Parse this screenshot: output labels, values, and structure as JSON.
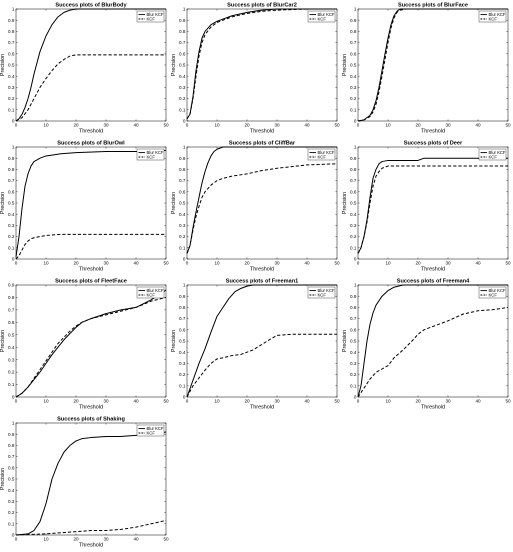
{
  "chart_data": [
    {
      "type": "line",
      "title": "Success plots of BlurBody",
      "xlabel": "Threshold",
      "ylabel": "Precision",
      "xlim": [
        0,
        50
      ],
      "ylim": [
        0,
        1
      ],
      "xticks": [
        0,
        10,
        20,
        30,
        40,
        50
      ],
      "yticks": [
        0,
        0.1,
        0.2,
        0.3,
        0.4,
        0.5,
        0.6,
        0.7,
        0.8,
        0.9,
        1
      ],
      "legend": "top-right",
      "series": [
        {
          "name": "Blur KCF",
          "style": "solid",
          "color": "#000000",
          "x": [
            0,
            1,
            2,
            3,
            4,
            5,
            6,
            7,
            8,
            10,
            12,
            14,
            16,
            18,
            20,
            25,
            30,
            40,
            50
          ],
          "y": [
            0,
            0.02,
            0.06,
            0.12,
            0.2,
            0.3,
            0.42,
            0.52,
            0.62,
            0.76,
            0.86,
            0.93,
            0.97,
            0.99,
            1.0,
            1.0,
            1.0,
            1.0,
            1.0
          ]
        },
        {
          "name": "KCF",
          "style": "dashed",
          "color": "#000000",
          "x": [
            0,
            2,
            4,
            6,
            8,
            10,
            12,
            14,
            16,
            18,
            20,
            25,
            30,
            40,
            50
          ],
          "y": [
            0,
            0.03,
            0.1,
            0.2,
            0.3,
            0.38,
            0.45,
            0.51,
            0.55,
            0.58,
            0.59,
            0.59,
            0.59,
            0.59,
            0.59
          ]
        }
      ]
    },
    {
      "type": "line",
      "title": "Success plots of BlurCar2",
      "xlabel": "Threshold",
      "ylabel": "Precision",
      "xlim": [
        0,
        50
      ],
      "ylim": [
        0,
        1
      ],
      "xticks": [
        0,
        10,
        20,
        30,
        40,
        50
      ],
      "yticks": [
        0,
        0.1,
        0.2,
        0.3,
        0.4,
        0.5,
        0.6,
        0.7,
        0.8,
        0.9,
        1
      ],
      "legend": "top-right",
      "series": [
        {
          "name": "Blur KCF",
          "style": "solid",
          "color": "#000000",
          "x": [
            0,
            1,
            2,
            3,
            4,
            5,
            6,
            8,
            10,
            12,
            15,
            20,
            25,
            30,
            40,
            50
          ],
          "y": [
            0.02,
            0.06,
            0.22,
            0.45,
            0.62,
            0.74,
            0.8,
            0.86,
            0.89,
            0.91,
            0.94,
            0.97,
            0.99,
            1.0,
            1.0,
            1.0
          ]
        },
        {
          "name": "KCF",
          "style": "dashed",
          "color": "#000000",
          "x": [
            0,
            1,
            2,
            3,
            4,
            5,
            6,
            8,
            10,
            12,
            15,
            20,
            25,
            30,
            40,
            50
          ],
          "y": [
            0.02,
            0.06,
            0.2,
            0.4,
            0.58,
            0.7,
            0.77,
            0.84,
            0.88,
            0.9,
            0.93,
            0.96,
            0.98,
            0.99,
            1.0,
            1.0
          ]
        }
      ]
    },
    {
      "type": "line",
      "title": "Success plots of BlurFace",
      "xlabel": "Threshold",
      "ylabel": "Precision",
      "xlim": [
        0,
        50
      ],
      "ylim": [
        0,
        1
      ],
      "xticks": [
        0,
        10,
        20,
        30,
        40,
        50
      ],
      "yticks": [
        0,
        0.1,
        0.2,
        0.3,
        0.4,
        0.5,
        0.6,
        0.7,
        0.8,
        0.9,
        1
      ],
      "legend": "top-right",
      "series": [
        {
          "name": "Blur KCF",
          "style": "solid",
          "color": "#000000",
          "x": [
            0,
            2,
            4,
            5,
            6,
            7,
            8,
            9,
            10,
            11,
            12,
            13,
            14,
            16,
            20,
            30,
            40,
            50
          ],
          "y": [
            0,
            0.01,
            0.05,
            0.1,
            0.18,
            0.3,
            0.45,
            0.6,
            0.74,
            0.86,
            0.94,
            0.98,
            1.0,
            1.0,
            1.0,
            1.0,
            1.0,
            1.0
          ]
        },
        {
          "name": "KCF",
          "style": "dashed",
          "color": "#000000",
          "x": [
            0,
            2,
            4,
            5,
            6,
            7,
            8,
            9,
            10,
            11,
            12,
            13,
            14,
            16,
            20,
            30,
            40,
            50
          ],
          "y": [
            0,
            0.01,
            0.04,
            0.08,
            0.15,
            0.26,
            0.4,
            0.55,
            0.7,
            0.83,
            0.92,
            0.97,
            0.99,
            1.0,
            1.0,
            1.0,
            1.0,
            1.0
          ]
        }
      ]
    },
    {
      "type": "line",
      "title": "Success plots of BlurOwl",
      "xlabel": "Threshold",
      "ylabel": "Precision",
      "xlim": [
        0,
        50
      ],
      "ylim": [
        0,
        1
      ],
      "xticks": [
        0,
        10,
        20,
        30,
        40,
        50
      ],
      "yticks": [
        0,
        0.1,
        0.2,
        0.3,
        0.4,
        0.5,
        0.6,
        0.7,
        0.8,
        0.9,
        1
      ],
      "legend": "top-right",
      "series": [
        {
          "name": "Blur KCF",
          "style": "solid",
          "color": "#000000",
          "x": [
            0,
            1,
            2,
            3,
            4,
            5,
            6,
            8,
            10,
            15,
            20,
            30,
            40,
            50
          ],
          "y": [
            0.02,
            0.2,
            0.45,
            0.65,
            0.76,
            0.83,
            0.87,
            0.9,
            0.92,
            0.94,
            0.95,
            0.96,
            0.96,
            0.97
          ]
        },
        {
          "name": "KCF",
          "style": "dashed",
          "color": "#000000",
          "x": [
            0,
            1,
            2,
            3,
            4,
            5,
            6,
            8,
            10,
            15,
            20,
            30,
            40,
            50
          ],
          "y": [
            0.0,
            0.03,
            0.08,
            0.13,
            0.16,
            0.18,
            0.19,
            0.2,
            0.21,
            0.22,
            0.22,
            0.22,
            0.22,
            0.22
          ]
        }
      ]
    },
    {
      "type": "line",
      "title": "Success plots of CliffBar",
      "xlabel": "Threshold",
      "ylabel": "Precision",
      "xlim": [
        0,
        50
      ],
      "ylim": [
        0,
        1
      ],
      "xticks": [
        0,
        10,
        20,
        30,
        40,
        50
      ],
      "yticks": [
        0,
        0.1,
        0.2,
        0.3,
        0.4,
        0.5,
        0.6,
        0.7,
        0.8,
        0.9,
        1
      ],
      "legend": "top-right",
      "series": [
        {
          "name": "Blur KCF",
          "style": "solid",
          "color": "#000000",
          "x": [
            0,
            1,
            2,
            3,
            4,
            5,
            6,
            7,
            8,
            9,
            10,
            12,
            15,
            20,
            30,
            40,
            50
          ],
          "y": [
            0.05,
            0.12,
            0.28,
            0.42,
            0.55,
            0.68,
            0.78,
            0.86,
            0.92,
            0.96,
            0.98,
            1.0,
            1.0,
            1.0,
            1.0,
            1.0,
            1.0
          ]
        },
        {
          "name": "KCF",
          "style": "dashed",
          "color": "#000000",
          "x": [
            0,
            1,
            2,
            3,
            4,
            5,
            6,
            8,
            10,
            12,
            15,
            20,
            25,
            30,
            40,
            50
          ],
          "y": [
            0.05,
            0.12,
            0.26,
            0.38,
            0.47,
            0.55,
            0.6,
            0.66,
            0.7,
            0.72,
            0.74,
            0.76,
            0.79,
            0.81,
            0.84,
            0.85
          ]
        }
      ]
    },
    {
      "type": "line",
      "title": "Success plots of Deer",
      "xlabel": "Threshold",
      "ylabel": "Precision",
      "xlim": [
        0,
        50
      ],
      "ylim": [
        0,
        1
      ],
      "xticks": [
        0,
        10,
        20,
        30,
        40,
        50
      ],
      "yticks": [
        0,
        0.1,
        0.2,
        0.3,
        0.4,
        0.5,
        0.6,
        0.7,
        0.8,
        0.9,
        1
      ],
      "legend": "top-right",
      "series": [
        {
          "name": "Blur KCF",
          "style": "solid",
          "color": "#000000",
          "x": [
            0,
            1,
            2,
            3,
            4,
            5,
            6,
            7,
            8,
            10,
            15,
            20,
            22,
            25,
            30,
            40,
            50
          ],
          "y": [
            0.05,
            0.1,
            0.2,
            0.35,
            0.55,
            0.72,
            0.8,
            0.85,
            0.87,
            0.88,
            0.88,
            0.88,
            0.9,
            0.9,
            0.9,
            0.9,
            0.9
          ]
        },
        {
          "name": "KCF",
          "style": "dashed",
          "color": "#000000",
          "x": [
            0,
            1,
            2,
            3,
            4,
            5,
            6,
            7,
            8,
            10,
            15,
            20,
            30,
            40,
            50
          ],
          "y": [
            0.05,
            0.1,
            0.2,
            0.33,
            0.5,
            0.65,
            0.74,
            0.78,
            0.81,
            0.83,
            0.83,
            0.83,
            0.83,
            0.83,
            0.83
          ]
        }
      ]
    },
    {
      "type": "line",
      "title": "Success plots of FleetFace",
      "xlabel": "Threshold",
      "ylabel": "Precision",
      "xlim": [
        0,
        50
      ],
      "ylim": [
        0,
        0.9
      ],
      "xticks": [
        0,
        10,
        20,
        30,
        40,
        50
      ],
      "yticks": [
        0,
        0.1,
        0.2,
        0.3,
        0.4,
        0.5,
        0.6,
        0.7,
        0.8,
        0.9
      ],
      "legend": "top-right",
      "series": [
        {
          "name": "Blur KCF",
          "style": "solid",
          "color": "#000000",
          "x": [
            0,
            2,
            4,
            6,
            8,
            10,
            12,
            14,
            16,
            18,
            20,
            22,
            25,
            30,
            35,
            40,
            45,
            50
          ],
          "y": [
            0.0,
            0.03,
            0.08,
            0.14,
            0.2,
            0.27,
            0.34,
            0.4,
            0.46,
            0.51,
            0.56,
            0.6,
            0.63,
            0.67,
            0.7,
            0.72,
            0.78,
            0.86
          ]
        },
        {
          "name": "KCF",
          "style": "dashed",
          "color": "#000000",
          "x": [
            0,
            2,
            4,
            6,
            8,
            10,
            12,
            14,
            16,
            18,
            20,
            22,
            25,
            30,
            35,
            40,
            45,
            50
          ],
          "y": [
            0.0,
            0.03,
            0.08,
            0.15,
            0.22,
            0.29,
            0.36,
            0.43,
            0.48,
            0.53,
            0.57,
            0.6,
            0.63,
            0.66,
            0.69,
            0.72,
            0.77,
            0.8
          ]
        }
      ]
    },
    {
      "type": "line",
      "title": "Success plots of Freeman1",
      "xlabel": "Threshold",
      "ylabel": "Precision",
      "xlim": [
        0,
        50
      ],
      "ylim": [
        0,
        1
      ],
      "xticks": [
        0,
        10,
        20,
        30,
        40,
        50
      ],
      "yticks": [
        0,
        0.1,
        0.2,
        0.3,
        0.4,
        0.5,
        0.6,
        0.7,
        0.8,
        0.9,
        1
      ],
      "legend": "top-right",
      "series": [
        {
          "name": "Blur KCF",
          "style": "solid",
          "color": "#000000",
          "x": [
            0,
            2,
            4,
            6,
            8,
            10,
            12,
            14,
            16,
            18,
            20,
            22,
            25,
            30,
            40,
            50
          ],
          "y": [
            0.0,
            0.15,
            0.3,
            0.43,
            0.58,
            0.72,
            0.8,
            0.88,
            0.94,
            0.97,
            0.99,
            1.0,
            1.0,
            1.0,
            1.0,
            1.0
          ]
        },
        {
          "name": "KCF",
          "style": "dashed",
          "color": "#000000",
          "x": [
            0,
            2,
            4,
            6,
            8,
            10,
            12,
            15,
            18,
            20,
            22,
            25,
            28,
            30,
            35,
            40,
            50
          ],
          "y": [
            0.0,
            0.1,
            0.17,
            0.24,
            0.3,
            0.34,
            0.35,
            0.37,
            0.38,
            0.4,
            0.42,
            0.47,
            0.52,
            0.55,
            0.56,
            0.56,
            0.56
          ]
        }
      ]
    },
    {
      "type": "line",
      "title": "Success plots of Freeman4",
      "xlabel": "Threshold",
      "ylabel": "Precision",
      "xlim": [
        0,
        50
      ],
      "ylim": [
        0,
        1
      ],
      "xticks": [
        0,
        10,
        20,
        30,
        40,
        50
      ],
      "yticks": [
        0,
        0.1,
        0.2,
        0.3,
        0.4,
        0.5,
        0.6,
        0.7,
        0.8,
        0.9,
        1
      ],
      "legend": "top-right",
      "series": [
        {
          "name": "Blur KCF",
          "style": "solid",
          "color": "#000000",
          "x": [
            0,
            1,
            2,
            3,
            4,
            5,
            6,
            8,
            10,
            12,
            15,
            20,
            30,
            40,
            50
          ],
          "y": [
            0.0,
            0.1,
            0.3,
            0.5,
            0.65,
            0.75,
            0.82,
            0.9,
            0.95,
            0.98,
            1.0,
            1.0,
            1.0,
            1.0,
            1.0
          ]
        },
        {
          "name": "KCF",
          "style": "dashed",
          "color": "#000000",
          "x": [
            0,
            2,
            4,
            6,
            8,
            10,
            12,
            15,
            18,
            20,
            22,
            25,
            30,
            35,
            40,
            45,
            50
          ],
          "y": [
            0.0,
            0.08,
            0.16,
            0.22,
            0.25,
            0.28,
            0.35,
            0.42,
            0.5,
            0.56,
            0.6,
            0.63,
            0.68,
            0.74,
            0.77,
            0.78,
            0.8
          ]
        }
      ]
    },
    {
      "type": "line",
      "title": "Success plots of Shaking",
      "xlabel": "Threshold",
      "ylabel": "Precision",
      "xlim": [
        0,
        50
      ],
      "ylim": [
        0,
        1
      ],
      "xticks": [
        0,
        10,
        20,
        30,
        40,
        50
      ],
      "yticks": [
        0,
        0.1,
        0.2,
        0.3,
        0.4,
        0.5,
        0.6,
        0.7,
        0.8,
        0.9,
        1
      ],
      "legend": "top-right",
      "series": [
        {
          "name": "Blur KCF",
          "style": "solid",
          "color": "#000000",
          "x": [
            0,
            4,
            6,
            8,
            10,
            12,
            14,
            16,
            18,
            20,
            22,
            25,
            30,
            35,
            40,
            45,
            50
          ],
          "y": [
            0.0,
            0.01,
            0.04,
            0.12,
            0.28,
            0.5,
            0.64,
            0.74,
            0.8,
            0.84,
            0.86,
            0.87,
            0.88,
            0.88,
            0.89,
            0.9,
            0.92
          ]
        },
        {
          "name": "KCF",
          "style": "dashed",
          "color": "#000000",
          "x": [
            0,
            10,
            15,
            20,
            25,
            30,
            35,
            40,
            45,
            50
          ],
          "y": [
            0.0,
            0.01,
            0.02,
            0.03,
            0.04,
            0.04,
            0.05,
            0.07,
            0.1,
            0.13
          ]
        }
      ]
    }
  ]
}
